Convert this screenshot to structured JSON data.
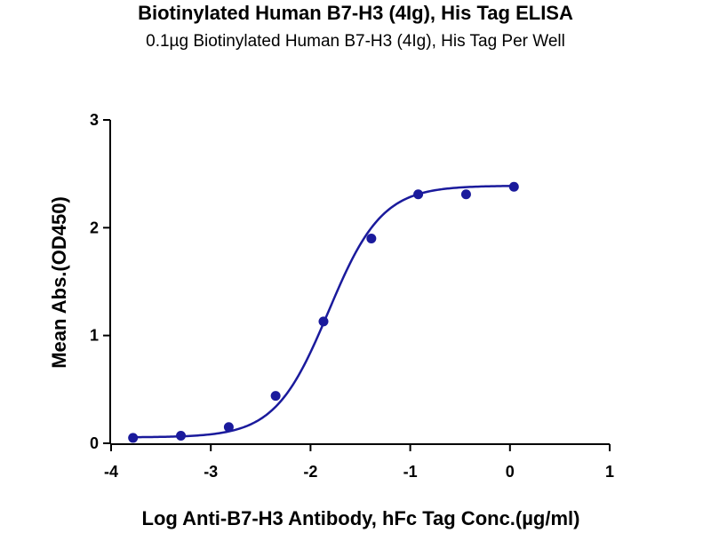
{
  "chart_data": {
    "type": "scatter",
    "title": "Biotinylated Human B7-H3 (4Ig), His Tag ELISA",
    "subtitle": "0.1µg Biotinylated Human B7-H3 (4Ig), His Tag Per Well",
    "xlabel": "Log Anti-B7-H3 Antibody, hFc Tag Conc.(µg/ml)",
    "ylabel": "Mean Abs.(OD450)",
    "xlim": [
      -4,
      1
    ],
    "ylim": [
      0,
      3
    ],
    "x_ticks": [
      "-4",
      "-3",
      "-2",
      "-1",
      "0",
      "1"
    ],
    "y_ticks": [
      "0",
      "1",
      "2",
      "3"
    ],
    "color": "#1a1a9c",
    "fit": "4-parameter logistic",
    "series": [
      {
        "points": [
          {
            "x": -3.78,
            "y": 0.05
          },
          {
            "x": -3.3,
            "y": 0.07
          },
          {
            "x": -2.82,
            "y": 0.15
          },
          {
            "x": -2.35,
            "y": 0.44
          },
          {
            "x": -1.87,
            "y": 1.13
          },
          {
            "x": -1.39,
            "y": 1.9
          },
          {
            "x": -0.92,
            "y": 2.31
          },
          {
            "x": -0.44,
            "y": 2.31
          },
          {
            "x": 0.04,
            "y": 2.38
          }
        ]
      }
    ]
  }
}
